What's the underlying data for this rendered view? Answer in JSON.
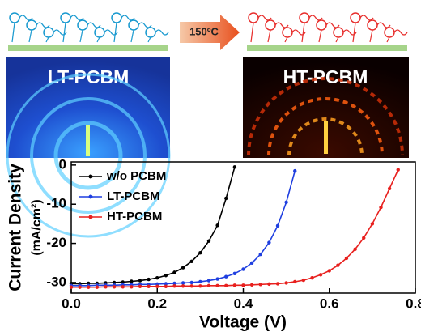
{
  "schematic": {
    "arrow_label": "150ºC",
    "panels": [
      "LT-PCBM",
      "HT-PCBM"
    ]
  },
  "chart_data": {
    "type": "line",
    "xlabel": "Voltage (V)",
    "ylabel": "Current Density",
    "ylabel_unit": "(mA/cm²)",
    "x": [
      0,
      0.02,
      0.04,
      0.06,
      0.08,
      0.1,
      0.12,
      0.14,
      0.16,
      0.18,
      0.2,
      0.22,
      0.24,
      0.26,
      0.28,
      0.3,
      0.32,
      0.34,
      0.36,
      0.38,
      0.4,
      0.42,
      0.44,
      0.46,
      0.48,
      0.5,
      0.52,
      0.54,
      0.56,
      0.58,
      0.6,
      0.62,
      0.64,
      0.66,
      0.68,
      0.7,
      0.72,
      0.74,
      0.76,
      0.78
    ],
    "series": [
      {
        "name": "w/o PCBM",
        "color": "#000000",
        "values": [
          -30.3,
          -30.3,
          -30.2,
          -30.2,
          -30.1,
          -30.0,
          -29.9,
          -29.7,
          -29.5,
          -29.2,
          -28.8,
          -28.2,
          -27.4,
          -26.2,
          -24.6,
          -22.4,
          -19.4,
          -15.4,
          -8.5,
          -0.5,
          null,
          null,
          null,
          null,
          null,
          null,
          null,
          null,
          null,
          null,
          null,
          null,
          null,
          null,
          null,
          null,
          null,
          null,
          null,
          null
        ]
      },
      {
        "name": "LT-PCBM",
        "color": "#1f3fe0",
        "values": [
          -30.8,
          -30.8,
          -30.8,
          -30.7,
          -30.7,
          -30.7,
          -30.6,
          -30.6,
          -30.5,
          -30.5,
          -30.4,
          -30.3,
          -30.2,
          -30.1,
          -30.0,
          -29.8,
          -29.5,
          -29.1,
          -28.5,
          -27.7,
          -26.6,
          -25.0,
          -22.8,
          -19.8,
          -15.5,
          -9.5,
          -1.5,
          null,
          null,
          null,
          null,
          null,
          null,
          null,
          null,
          null,
          null,
          null,
          null,
          null
        ]
      },
      {
        "name": "HT-PCBM",
        "color": "#e8201e",
        "values": [
          -31.2,
          -31.2,
          -31.2,
          -31.2,
          -31.1,
          -31.1,
          -31.1,
          -31.1,
          -31.0,
          -31.0,
          -31.0,
          -31.0,
          -30.9,
          -30.9,
          -30.9,
          -30.9,
          -30.8,
          -30.8,
          -30.8,
          -30.7,
          -30.7,
          -30.6,
          -30.5,
          -30.4,
          -30.3,
          -30.1,
          -29.8,
          -29.4,
          -28.8,
          -28.0,
          -27.0,
          -25.6,
          -23.8,
          -21.5,
          -18.6,
          -15.0,
          -10.8,
          -6.0,
          -1.2,
          null
        ]
      }
    ],
    "xlim": [
      0,
      0.8
    ],
    "ylim": [
      -32.7,
      0.8
    ],
    "xticks": [
      {
        "value": 0,
        "label": "0.0"
      },
      0.2,
      0.4,
      0.6,
      0.8
    ],
    "yticks": [
      0,
      -10,
      -20,
      -30
    ],
    "legend": "upper-left"
  }
}
